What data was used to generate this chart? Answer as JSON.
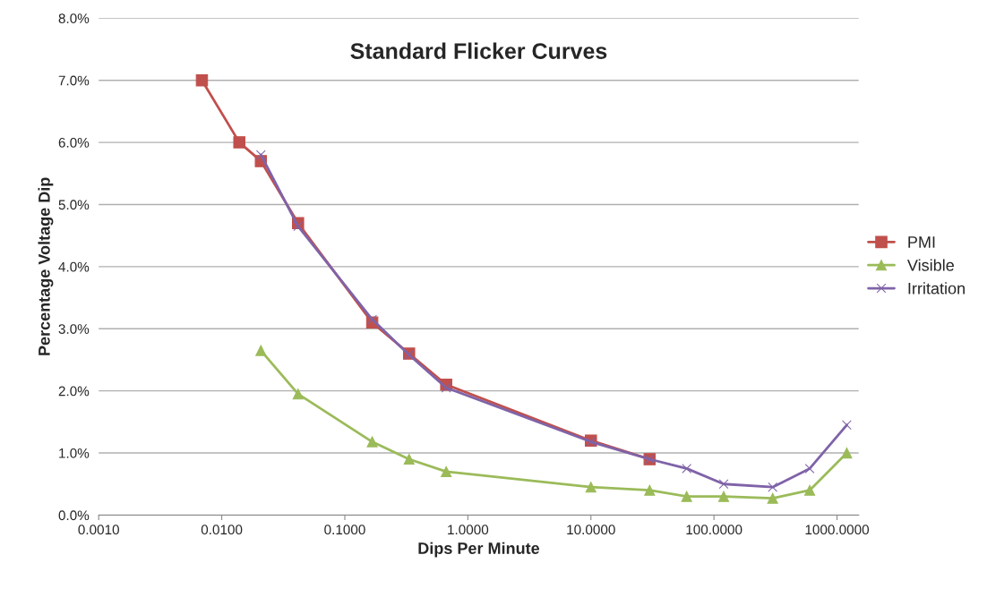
{
  "chart_data": {
    "type": "line",
    "title": "Standard Flicker Curves",
    "xlabel": "Dips Per Minute",
    "ylabel": "Percentage Voltage Dip",
    "log": "x",
    "grid": "y",
    "legend": "right",
    "xlim": [
      0.001,
      1500
    ],
    "xticks": [
      {
        "value": 0.001,
        "label": "0.0010"
      },
      {
        "value": 0.01,
        "label": "0.0100"
      },
      {
        "value": 0.1,
        "label": "0.1000"
      },
      {
        "value": 1,
        "label": "1.0000"
      },
      {
        "value": 10,
        "label": "10.0000"
      },
      {
        "value": 100,
        "label": "100.0000"
      },
      {
        "value": 1000,
        "label": "1000.0000"
      }
    ],
    "ylim": [
      0,
      8
    ],
    "yticks": [
      {
        "value": 0,
        "label": "0.0%"
      },
      {
        "value": 1,
        "label": "1.0%"
      },
      {
        "value": 2,
        "label": "2.0%"
      },
      {
        "value": 3,
        "label": "3.0%"
      },
      {
        "value": 4,
        "label": "4.0%"
      },
      {
        "value": 5,
        "label": "5.0%"
      },
      {
        "value": 6,
        "label": "6.0%"
      },
      {
        "value": 7,
        "label": "7.0%"
      },
      {
        "value": 8,
        "label": "8.0%"
      }
    ],
    "series": [
      {
        "name": "PMI",
        "color": "#c0504d",
        "marker": "square",
        "x": [
          0.0069,
          0.0139,
          0.0208,
          0.0417,
          0.167,
          0.333,
          0.667,
          10,
          30
        ],
        "values": [
          7.0,
          6.0,
          5.7,
          4.7,
          3.1,
          2.6,
          2.1,
          1.2,
          0.9
        ]
      },
      {
        "name": "Visible",
        "color": "#9bbb59",
        "marker": "triangle",
        "x": [
          0.0208,
          0.0417,
          0.167,
          0.333,
          0.667,
          10,
          30,
          60,
          120,
          300,
          600,
          1200
        ],
        "values": [
          2.65,
          1.95,
          1.18,
          0.9,
          0.7,
          0.45,
          0.4,
          0.3,
          0.3,
          0.27,
          0.4,
          1.0
        ]
      },
      {
        "name": "Irritation",
        "color": "#7f63a8",
        "marker": "cross",
        "x": [
          0.0208,
          0.0417,
          0.167,
          0.333,
          0.667,
          10,
          30,
          60,
          120,
          300,
          600,
          1200
        ],
        "values": [
          5.8,
          4.65,
          3.15,
          2.58,
          2.05,
          1.18,
          0.9,
          0.75,
          0.5,
          0.45,
          0.75,
          1.45
        ]
      }
    ]
  }
}
